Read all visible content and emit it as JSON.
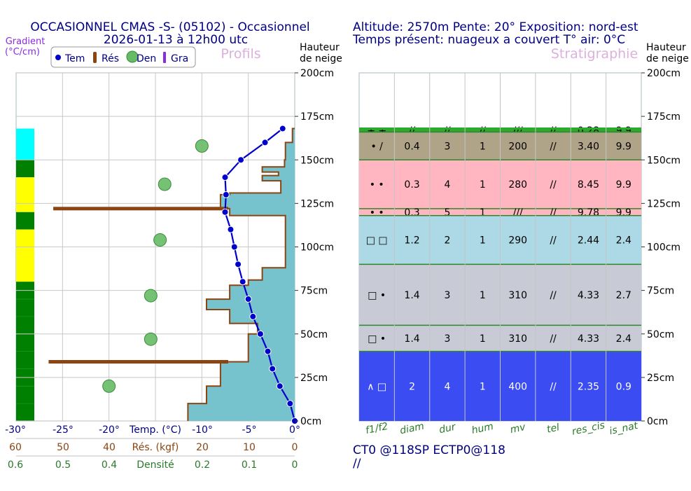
{
  "header": {
    "title_line1": "OCCASIONNEL CMAS -S- (05102) - Occasionnel",
    "title_line2": "2026-01-13 à 12h00 utc",
    "info_line1": "Altitude: 2570m Pente: 20° Exposition: nord-est",
    "info_line2": "Temps présent: nuageux a couvert T° air: 0°C"
  },
  "colors": {
    "title": "#000080",
    "temp": "#0000cc",
    "res": "#8b4513",
    "den": "#66bb66",
    "gra": "#8a2be2",
    "fill": "#76c3cd",
    "grid": "#c8c8c8",
    "headers": "#ddb0dd",
    "strat_axis": "#2a7a2a",
    "gradient_label": "#8a2be2"
  },
  "chart_data": [
    {
      "type": "line",
      "panel": "Profils",
      "gradient_label_line1": "Gradient",
      "gradient_label_line2": "(°C/cm)",
      "height_label_line1": "Hauteur",
      "height_label_line2": "de neige",
      "y_ticks": [
        "200cm",
        "175cm",
        "150cm",
        "125cm",
        "100cm",
        "75cm",
        "50cm",
        "25cm",
        "0cm"
      ],
      "y_tick_values": [
        200,
        175,
        150,
        125,
        100,
        75,
        50,
        25,
        0
      ],
      "ylim": [
        0,
        200
      ],
      "legend": [
        {
          "key": "tem",
          "label": "Tem",
          "shape": "dot"
        },
        {
          "key": "res",
          "label": "Rés",
          "shape": "bar"
        },
        {
          "key": "den",
          "label": "Den",
          "shape": "circle"
        },
        {
          "key": "gra",
          "label": "Gra",
          "shape": "bar"
        }
      ],
      "axis_temp": {
        "label": "Temp. (°C)",
        "ticks": [
          "-30°",
          "-25°",
          "-20°",
          "-15°",
          "-10°",
          "-5°",
          "0°"
        ],
        "xlim": [
          -30,
          0
        ]
      },
      "axis_res": {
        "label": "Rés. (kgf)",
        "ticks": [
          "60",
          "50",
          "40",
          "30",
          "20",
          "10",
          "0"
        ]
      },
      "axis_den": {
        "label": "Densité",
        "ticks": [
          "0.6",
          "0.5",
          "0.4",
          "0.3",
          "0.2",
          "0.1",
          "0"
        ]
      },
      "temperature": [
        {
          "h": 168,
          "t": -1.3
        },
        {
          "h": 160,
          "t": -3.2
        },
        {
          "h": 150,
          "t": -5.8
        },
        {
          "h": 140,
          "t": -7.5
        },
        {
          "h": 130,
          "t": -7.4
        },
        {
          "h": 120,
          "t": -7.5
        },
        {
          "h": 110,
          "t": -6.9
        },
        {
          "h": 100,
          "t": -6.5
        },
        {
          "h": 90,
          "t": -6.1
        },
        {
          "h": 80,
          "t": -5.6
        },
        {
          "h": 70,
          "t": -5.0
        },
        {
          "h": 60,
          "t": -4.5
        },
        {
          "h": 50,
          "t": -3.7
        },
        {
          "h": 40,
          "t": -2.9
        },
        {
          "h": 30,
          "t": -2.4
        },
        {
          "h": 20,
          "t": -1.6
        },
        {
          "h": 10,
          "t": -0.5
        },
        {
          "h": 0,
          "t": 0
        }
      ],
      "ram_profile": [
        {
          "h": 168,
          "r": 0
        },
        {
          "h": 168,
          "r": 0.5
        },
        {
          "h": 160,
          "r": 0.5
        },
        {
          "h": 160,
          "r": 2
        },
        {
          "h": 150,
          "r": 2
        },
        {
          "h": 150,
          "r": 2.2
        },
        {
          "h": 146,
          "r": 2.2
        },
        {
          "h": 146,
          "r": 7
        },
        {
          "h": 143,
          "r": 7
        },
        {
          "h": 143,
          "r": 3.5
        },
        {
          "h": 141,
          "r": 3.5
        },
        {
          "h": 141,
          "r": 7
        },
        {
          "h": 138,
          "r": 7
        },
        {
          "h": 138,
          "r": 3
        },
        {
          "h": 131,
          "r": 3
        },
        {
          "h": 131,
          "r": 14
        },
        {
          "h": 130,
          "r": 14
        },
        {
          "h": 130,
          "r": 16
        },
        {
          "h": 122,
          "r": 16
        },
        {
          "h": 122,
          "r": 14
        },
        {
          "h": 118,
          "r": 14
        },
        {
          "h": 118,
          "r": 2
        },
        {
          "h": 88,
          "r": 2
        },
        {
          "h": 88,
          "r": 7
        },
        {
          "h": 81,
          "r": 7
        },
        {
          "h": 81,
          "r": 10
        },
        {
          "h": 78,
          "r": 10
        },
        {
          "h": 78,
          "r": 14
        },
        {
          "h": 70,
          "r": 14
        },
        {
          "h": 70,
          "r": 19
        },
        {
          "h": 64,
          "r": 19
        },
        {
          "h": 64,
          "r": 14
        },
        {
          "h": 56,
          "r": 14
        },
        {
          "h": 56,
          "r": 8
        },
        {
          "h": 50,
          "r": 8
        },
        {
          "h": 50,
          "r": 10
        },
        {
          "h": 34,
          "r": 10
        },
        {
          "h": 34,
          "r": 16
        },
        {
          "h": 26,
          "r": 16
        },
        {
          "h": 26,
          "r": 16
        },
        {
          "h": 20,
          "r": 16
        },
        {
          "h": 20,
          "r": 19
        },
        {
          "h": 10,
          "r": 19
        },
        {
          "h": 10,
          "r": 23
        },
        {
          "h": 0,
          "r": 23
        }
      ],
      "resistance_bars": [
        {
          "h": 122,
          "r": 52
        },
        {
          "h": 34,
          "r": 53
        }
      ],
      "density": [
        {
          "h": 158,
          "d": 0.2
        },
        {
          "h": 136,
          "d": 0.28
        },
        {
          "h": 104,
          "d": 0.29
        },
        {
          "h": 72,
          "d": 0.31
        },
        {
          "h": 47,
          "d": 0.31
        },
        {
          "h": 20,
          "d": 0.4
        }
      ],
      "gradient_blocks": [
        {
          "h0": 150,
          "h1": 168,
          "color": "#00ffff"
        },
        {
          "h0": 140,
          "h1": 150,
          "color": "#008000"
        },
        {
          "h0": 120,
          "h1": 140,
          "color": "#ffff00"
        },
        {
          "h0": 110,
          "h1": 120,
          "color": "#008000"
        },
        {
          "h0": 80,
          "h1": 110,
          "color": "#ffff00"
        },
        {
          "h0": 0,
          "h1": 80,
          "color": "#008000"
        }
      ]
    },
    {
      "type": "table",
      "panel": "Stratigraphie",
      "height_label_line1": "Hauteur",
      "height_label_line2": "de neige",
      "y_ticks": [
        "200cm",
        "175cm",
        "150cm",
        "125cm",
        "100cm",
        "75cm",
        "50cm",
        "25cm",
        "0cm"
      ],
      "y_tick_values": [
        200,
        175,
        150,
        125,
        100,
        75,
        50,
        25,
        0
      ],
      "ylim": [
        0,
        200
      ],
      "columns": [
        "f1/f2",
        "diam",
        "dur",
        "hum",
        "mv",
        "tel",
        "res_cis",
        "is_nat"
      ],
      "layers": [
        {
          "h0": 166,
          "h1": 168,
          "color": "#2ea82e",
          "cells": [
            "+ +",
            "//",
            "//",
            "//",
            "///",
            "//",
            "0.28",
            "9.9"
          ]
        },
        {
          "h0": 150,
          "h1": 166,
          "color": "#b0a488",
          "cells": [
            "• /",
            "0.4",
            "3",
            "1",
            "200",
            "//",
            "3.40",
            "9.9"
          ]
        },
        {
          "h0": 122,
          "h1": 150,
          "color": "#ffb6c1",
          "cells": [
            "• •",
            "0.3",
            "4",
            "1",
            "280",
            "//",
            "8.45",
            "9.9"
          ]
        },
        {
          "h0": 118,
          "h1": 122,
          "color": "#ffb6c1",
          "cells": [
            "• •",
            "0.3",
            "5",
            "1",
            "///",
            "//",
            "9.78",
            "9.9"
          ]
        },
        {
          "h0": 90,
          "h1": 118,
          "color": "#add8e6",
          "cells": [
            "□ □",
            "1.2",
            "2",
            "1",
            "290",
            "//",
            "2.44",
            "2.4"
          ]
        },
        {
          "h0": 55,
          "h1": 90,
          "color": "#c8cad6",
          "cells": [
            "□ •",
            "1.4",
            "3",
            "1",
            "310",
            "//",
            "4.33",
            "2.7"
          ]
        },
        {
          "h0": 40,
          "h1": 55,
          "color": "#c8cad6",
          "cells": [
            "□ •",
            "1.4",
            "3",
            "1",
            "310",
            "//",
            "4.33",
            "2.4"
          ]
        },
        {
          "h0": 0,
          "h1": 40,
          "color": "#3a4cf2",
          "text_color": "#ffffff",
          "cells": [
            "∧ □",
            "2",
            "4",
            "1",
            "400",
            "//",
            "2.35",
            "0.9"
          ]
        }
      ]
    }
  ],
  "footer": {
    "test_line1": "CT0 @118SP ECTP0@118",
    "test_line2": "//"
  }
}
